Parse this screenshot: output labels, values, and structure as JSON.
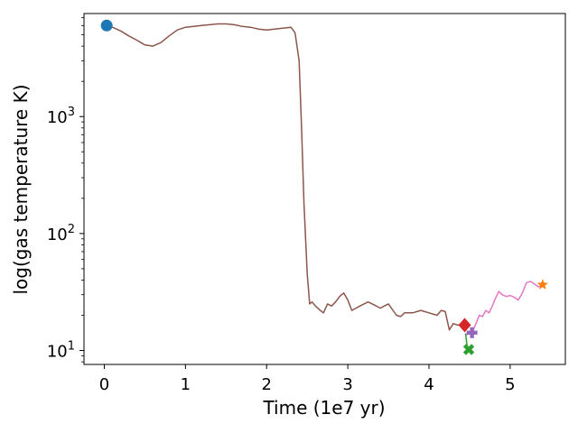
{
  "chart_data": {
    "type": "line",
    "title": "",
    "xlabel": "Time (1e7 yr)",
    "ylabel": "log(gas temperature K)",
    "xlim": [
      -0.25,
      5.68
    ],
    "ylim": [
      7.6,
      7600
    ],
    "yscale": "log",
    "grid": false,
    "x_ticks": [
      {
        "value": 0,
        "label": "0"
      },
      {
        "value": 1,
        "label": "1"
      },
      {
        "value": 2,
        "label": "2"
      },
      {
        "value": 3,
        "label": "3"
      },
      {
        "value": 4,
        "label": "4"
      },
      {
        "value": 5,
        "label": "5"
      }
    ],
    "y_ticks": [
      {
        "value": 10,
        "base": "10",
        "exp": "1"
      },
      {
        "value": 100,
        "base": "10",
        "exp": "2"
      },
      {
        "value": 1000,
        "base": "10",
        "exp": "3"
      }
    ],
    "series": [
      {
        "color": "#8c564b",
        "x": [
          0.03,
          0.1,
          0.2,
          0.3,
          0.4,
          0.5,
          0.6,
          0.7,
          0.8,
          0.9,
          1.0,
          1.1,
          1.2,
          1.3,
          1.4,
          1.5,
          1.6,
          1.7,
          1.8,
          1.9,
          2.0,
          2.1,
          2.2,
          2.3,
          2.35,
          2.4,
          2.43,
          2.46,
          2.5,
          2.53,
          2.56,
          2.6,
          2.63,
          2.66,
          2.7,
          2.75,
          2.8,
          2.85,
          2.9,
          2.95,
          3.0,
          3.05,
          3.1,
          3.15,
          3.2,
          3.25,
          3.3,
          3.35,
          3.4,
          3.45,
          3.5,
          3.6,
          3.65,
          3.7,
          3.8,
          3.9,
          4.0,
          4.1,
          4.15,
          4.2,
          4.25,
          4.3,
          4.35,
          4.4,
          4.45
        ],
        "y": [
          6000,
          5800,
          5400,
          4900,
          4500,
          4100,
          4000,
          4300,
          4900,
          5500,
          5800,
          5900,
          6000,
          6100,
          6200,
          6200,
          6100,
          5900,
          5800,
          5600,
          5500,
          5600,
          5700,
          5800,
          5200,
          3000,
          800,
          180,
          45,
          25,
          26,
          24,
          23,
          22,
          21,
          25,
          24,
          26,
          29,
          31,
          27,
          22,
          23,
          24,
          25,
          26,
          25,
          24,
          23,
          24,
          25,
          20,
          19.5,
          21,
          21,
          22,
          21,
          20,
          22,
          21.5,
          15,
          17,
          16.5,
          16.5,
          16
        ],
        "marker": "o",
        "marker_color": "#1f77b4",
        "marker_point": [
          0.03,
          6000
        ]
      },
      {
        "color": "#d62728",
        "x": [
          4.38,
          4.41,
          4.44,
          4.47
        ],
        "y": [
          16.5,
          16.8,
          16.5,
          16
        ],
        "marker": "D",
        "marker_color": "#d62728",
        "marker_point": [
          4.44,
          16.5
        ]
      },
      {
        "color": "#2ca02c",
        "x": [
          4.45,
          4.47,
          4.49
        ],
        "y": [
          14,
          11,
          10.2
        ],
        "marker": "X",
        "marker_color": "#2ca02c",
        "marker_point": [
          4.49,
          10.2
        ]
      },
      {
        "color": "#9467bd",
        "x": [
          4.45,
          4.49,
          4.53
        ],
        "y": [
          13.5,
          13.9,
          14.2
        ],
        "marker": "P",
        "marker_color": "#9467bd",
        "marker_point": [
          4.53,
          14.2
        ]
      },
      {
        "color": "#e377c2",
        "x": [
          4.53,
          4.58,
          4.62,
          4.66,
          4.7,
          4.74,
          4.78,
          4.82,
          4.86,
          4.9,
          4.95,
          5.0,
          5.05,
          5.1,
          5.15,
          5.2,
          5.25,
          5.3,
          5.35,
          5.4
        ],
        "y": [
          14.2,
          17,
          20,
          19.5,
          22,
          21,
          24,
          28,
          32,
          30,
          29,
          29.5,
          28.5,
          27,
          31,
          38,
          39,
          37,
          35,
          36.5
        ],
        "marker": "none"
      },
      {
        "color": "#ff7f0e",
        "x": [
          5.4
        ],
        "y": [
          36.5
        ],
        "marker": "*",
        "marker_color": "#ff7f0e",
        "marker_point": [
          5.4,
          36.5
        ]
      }
    ]
  }
}
